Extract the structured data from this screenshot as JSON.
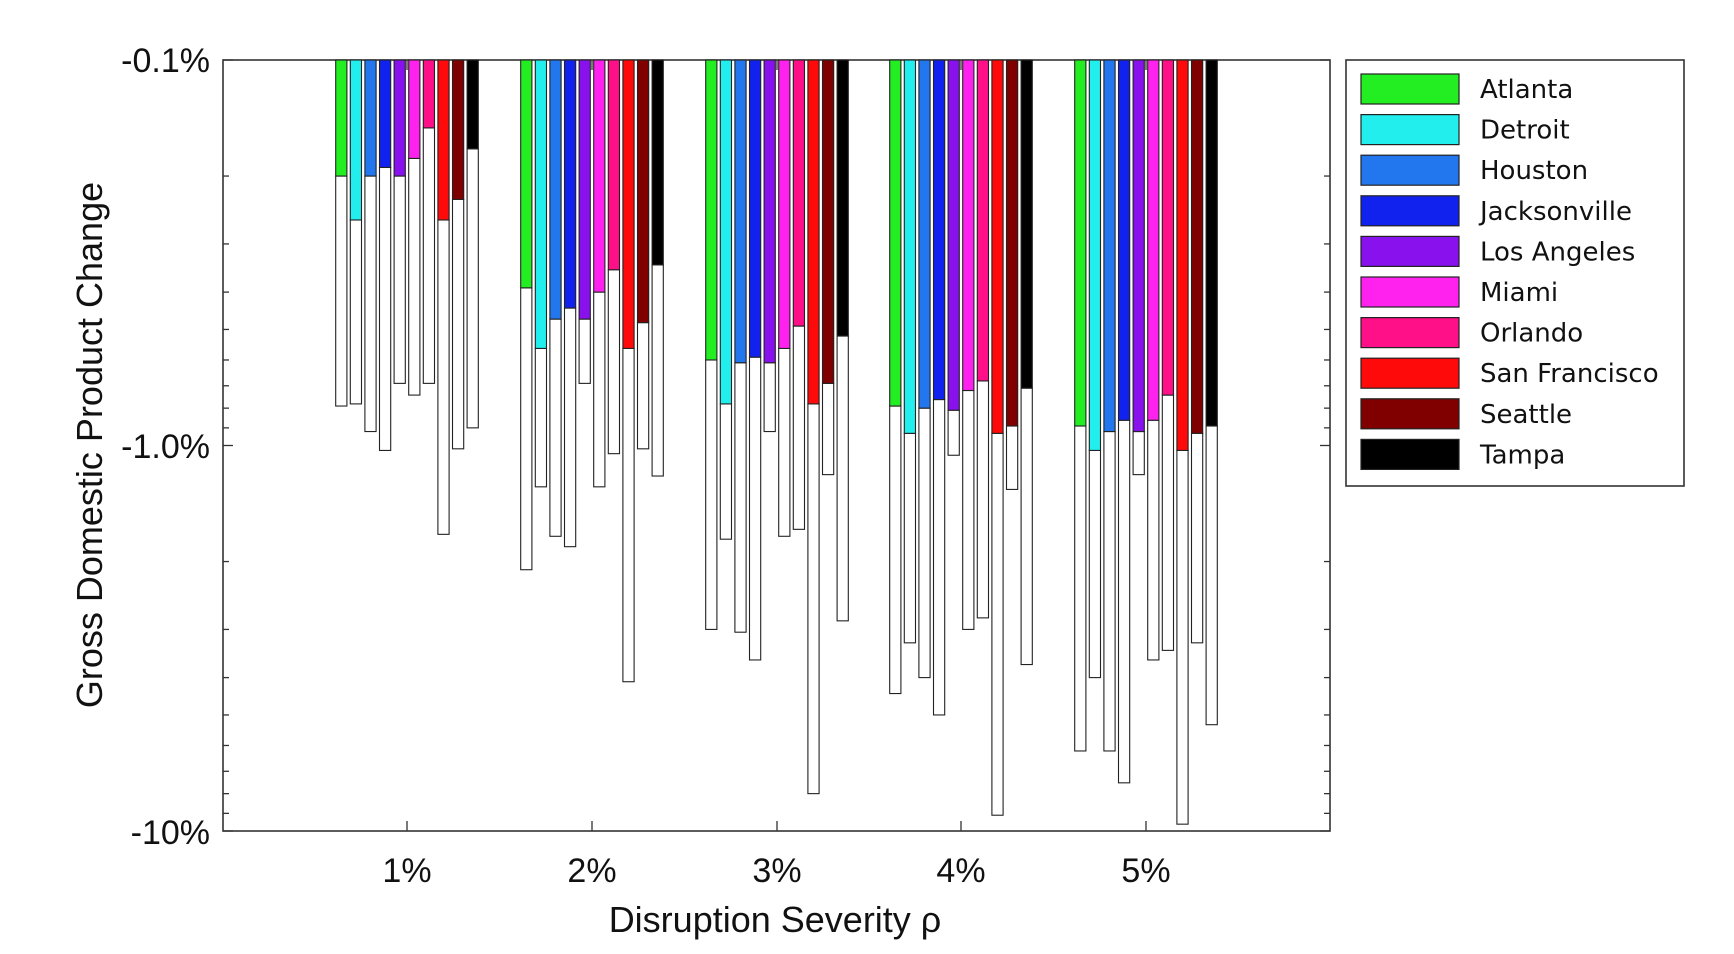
{
  "chart_data": {
    "type": "bar",
    "title": "",
    "xlabel": "Disruption Severity ρ",
    "ylabel": "Gross Domestic Product Change",
    "y_scale": "log",
    "y_direction": "downward",
    "ylim": [
      0.1,
      10
    ],
    "y_tick_labels": [
      "-0.1%",
      "-1.0%",
      "-10%"
    ],
    "categories": [
      "1%",
      "2%",
      "3%",
      "4%",
      "5%"
    ],
    "legend_position": "right",
    "grid": false,
    "bar_meaning": "Colored segment = lower estimate of GDP loss (%); outlined white extension = upper estimate of GDP loss (%)",
    "series": [
      {
        "name": "Atlanta",
        "color": "#22ee22",
        "low": [
          0.2,
          0.39,
          0.6,
          0.79,
          0.89
        ],
        "high": [
          0.79,
          2.1,
          3.0,
          4.4,
          6.2
        ]
      },
      {
        "name": "Detroit",
        "color": "#22eeee",
        "low": [
          0.26,
          0.56,
          0.78,
          0.93,
          1.03
        ],
        "high": [
          0.78,
          1.28,
          1.75,
          3.25,
          4.0
        ]
      },
      {
        "name": "Houston",
        "color": "#2277ee",
        "low": [
          0.2,
          0.47,
          0.61,
          0.8,
          0.92
        ],
        "high": [
          0.92,
          1.72,
          3.05,
          4.0,
          6.2
        ]
      },
      {
        "name": "Jacksonville",
        "color": "#1122ee",
        "low": [
          0.19,
          0.44,
          0.59,
          0.76,
          0.86
        ],
        "high": [
          1.03,
          1.83,
          3.6,
          5.0,
          7.5
        ]
      },
      {
        "name": "Los Angeles",
        "color": "#8811ee",
        "low": [
          0.2,
          0.47,
          0.61,
          0.81,
          0.92
        ],
        "high": [
          0.69,
          0.69,
          0.92,
          1.06,
          1.19
        ]
      },
      {
        "name": "Miami",
        "color": "#ff22ee",
        "low": [
          0.18,
          0.4,
          0.56,
          0.72,
          0.86
        ],
        "high": [
          0.74,
          1.28,
          1.72,
          3.0,
          3.6
        ]
      },
      {
        "name": "Orlando",
        "color": "#ff0f88",
        "low": [
          0.15,
          0.35,
          0.49,
          0.68,
          0.74
        ],
        "high": [
          0.69,
          1.05,
          1.65,
          2.8,
          3.4
        ]
      },
      {
        "name": "San Francisco",
        "color": "#ff0a0a",
        "low": [
          0.26,
          0.56,
          0.78,
          0.93,
          1.03
        ],
        "high": [
          1.7,
          4.1,
          8.0,
          9.1,
          9.6
        ]
      },
      {
        "name": "Seattle",
        "color": "#800000",
        "low": [
          0.23,
          0.48,
          0.69,
          0.89,
          0.93
        ],
        "high": [
          1.02,
          1.02,
          1.19,
          1.3,
          3.25
        ]
      },
      {
        "name": "Tampa",
        "color": "#000000",
        "low": [
          0.17,
          0.34,
          0.52,
          0.71,
          0.89
        ],
        "high": [
          0.9,
          1.2,
          2.85,
          3.7,
          5.3
        ]
      }
    ]
  }
}
